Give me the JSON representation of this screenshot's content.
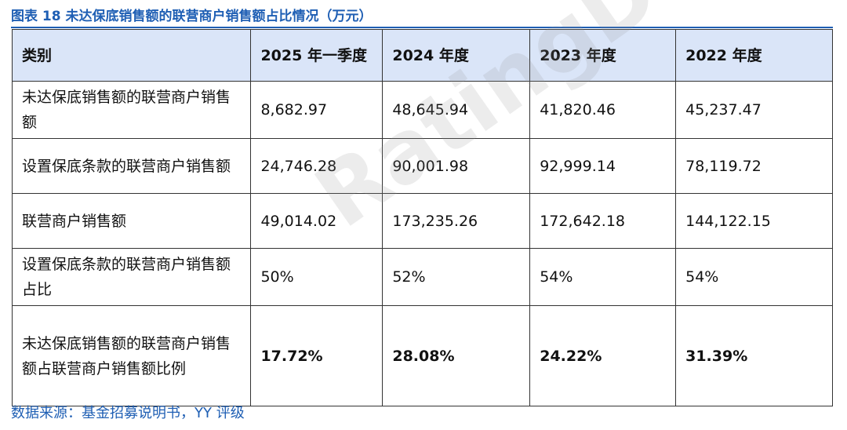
{
  "title": "图表 18 未达保底销售额的联营商户销售额占比情况（万元）",
  "table": {
    "header": [
      "类别",
      "2025 年一季度",
      "2024 年度",
      "2023 年度",
      "2022 年度"
    ],
    "rows": [
      [
        "未达保底销售额的联营商户销售额",
        "8,682.97",
        "48,645.94",
        "41,820.46",
        "45,237.47"
      ],
      [
        "设置保底条款的联营商户销售额",
        "24,746.28",
        "90,001.98",
        "92,999.14",
        "78,119.72"
      ],
      [
        "联营商户销售额",
        "49,014.02",
        "173,235.26",
        "172,642.18",
        "144,122.15"
      ],
      [
        "设置保底条款的联营商户销售额占比",
        "50%",
        "52%",
        "54%",
        "54%"
      ],
      [
        "未达保底销售额的联营商户销售额占联营商户销售额比例",
        "17.72%",
        "28.08%",
        "24.22%",
        "31.39%"
      ]
    ]
  },
  "source": "数据来源：基金招募说明书，YY 评级",
  "watermark": "RatingDog"
}
